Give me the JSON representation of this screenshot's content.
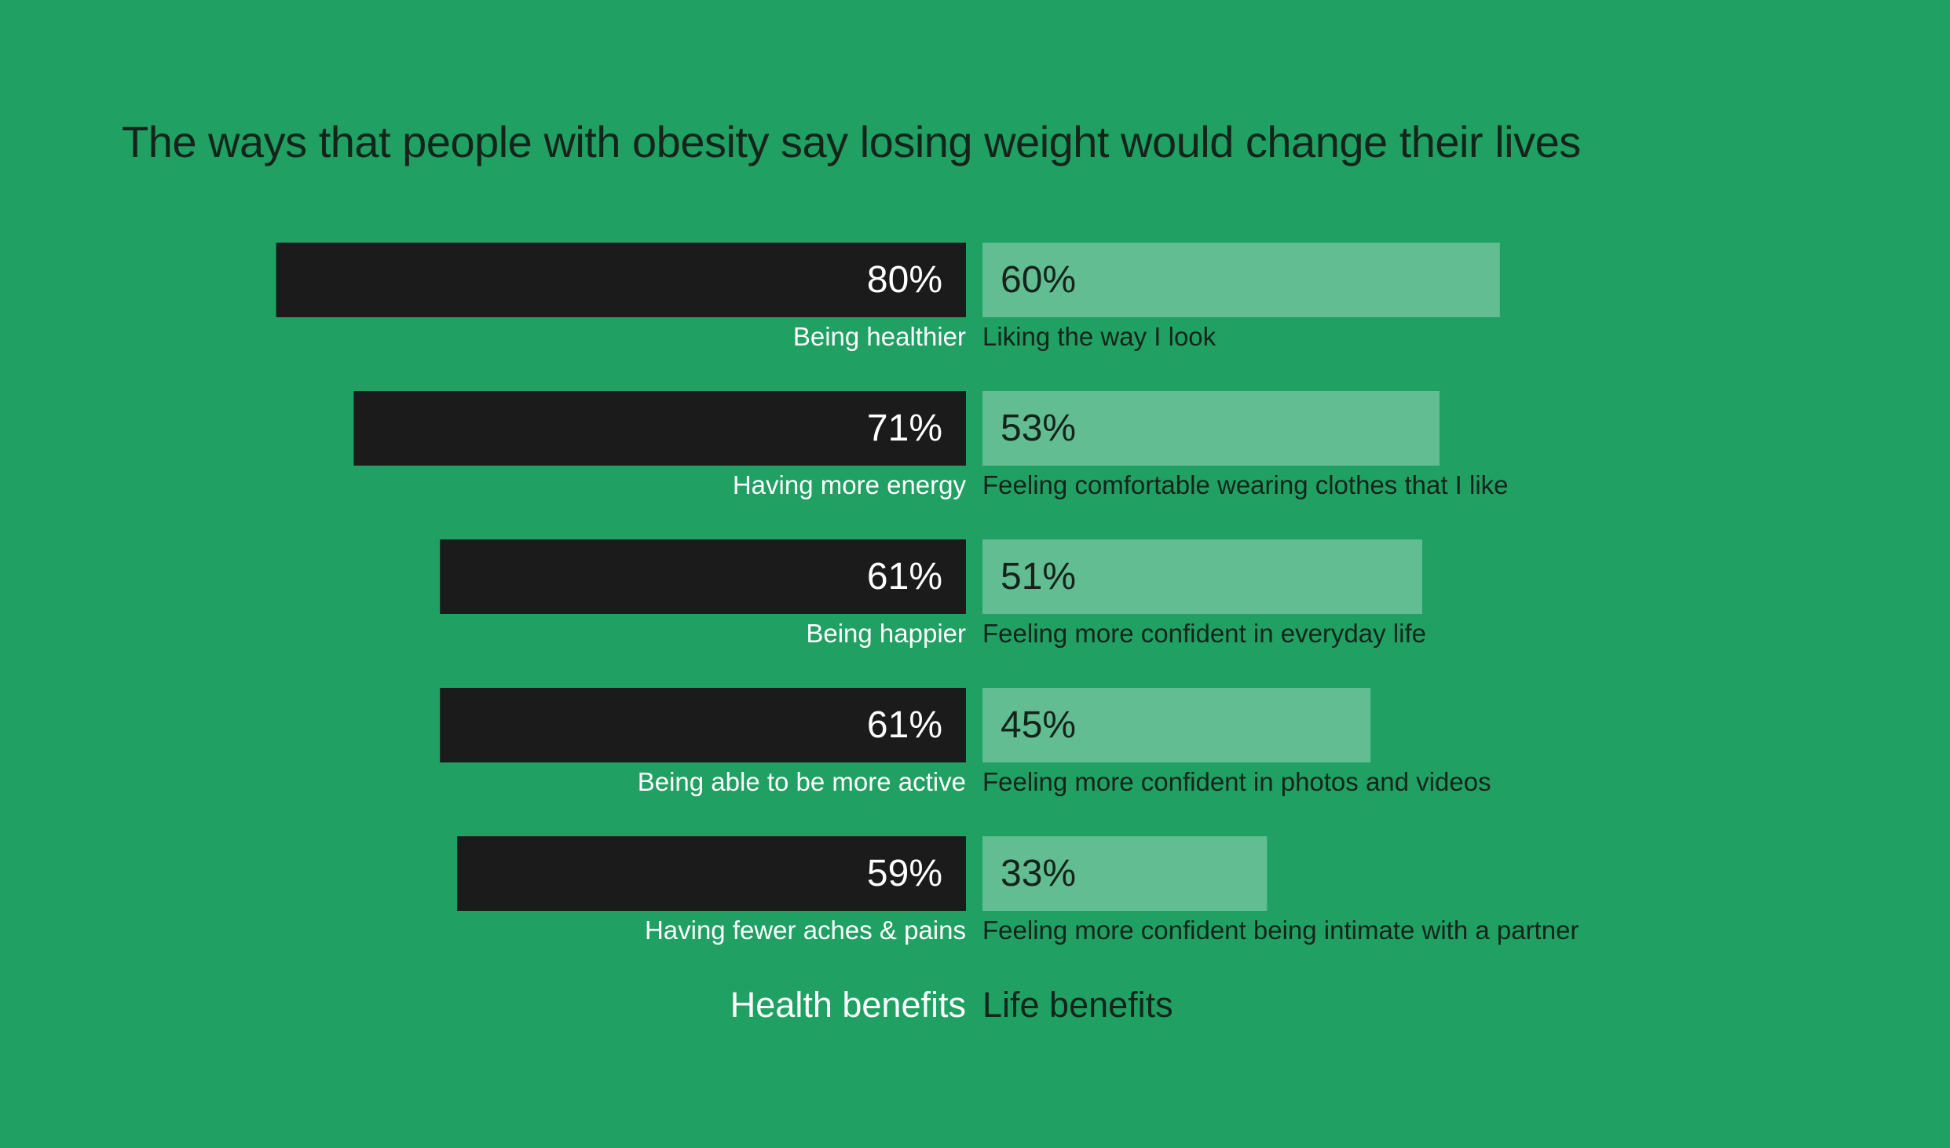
{
  "chart_data": {
    "type": "bar",
    "title": "The ways that people with obesity say losing weight would change their lives",
    "series": [
      {
        "name": "Health benefits",
        "categories": [
          "Being healthier",
          "Having more energy",
          "Being happier",
          "Being able to be more active",
          "Having fewer aches & pains"
        ],
        "values": [
          80,
          71,
          61,
          61,
          59
        ],
        "value_labels": [
          "80%",
          "71%",
          "61%",
          "61%",
          "59%"
        ],
        "color": "#1b1b1c"
      },
      {
        "name": "Life benefits",
        "categories": [
          "Liking the way I look",
          "Feeling comfortable wearing clothes that I like",
          "Feeling more confident in everyday life",
          "Feeling more confident in photos and videos",
          "Feeling more confident being intimate with a partner"
        ],
        "values": [
          60,
          53,
          51,
          45,
          33
        ],
        "value_labels": [
          "60%",
          "53%",
          "51%",
          "45%",
          "33%"
        ],
        "color": "#63bd93"
      }
    ],
    "unit": "%",
    "xlim": [
      0,
      100
    ],
    "grid": false,
    "colors": {
      "background": "#20a062",
      "health_text": "#ffffff",
      "life_text": "#14241b"
    }
  }
}
